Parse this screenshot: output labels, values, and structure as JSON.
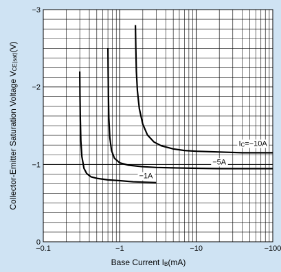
{
  "colors": {
    "background": "#cfe3f3",
    "plot": "#ffffff",
    "ink": "#000000"
  },
  "chart_data": {
    "type": "line",
    "title": "",
    "xlabel": "Base Current I",
    "xlabel_sub": "B",
    "xlabel_unit": "(mA)",
    "ylabel": "Collector-Emitter Saturation Voltage V",
    "ylabel_sub": "CE(sat)",
    "ylabel_unit": "(V)",
    "x_scale": "log",
    "xlim": [
      -0.1,
      -100
    ],
    "ylim": [
      0,
      -3
    ],
    "grid": true,
    "x_ticks": [
      {
        "value": -0.1,
        "label": "−0.1"
      },
      {
        "value": -1,
        "label": "−1"
      },
      {
        "value": -10,
        "label": "−10"
      },
      {
        "value": -100,
        "label": "−100"
      }
    ],
    "y_ticks": [
      {
        "value": 0,
        "label": "0"
      },
      {
        "value": -1,
        "label": "−1"
      },
      {
        "value": -2,
        "label": "−2"
      },
      {
        "value": -3,
        "label": "−3"
      }
    ],
    "series": [
      {
        "name": "−1A",
        "x": [
          -0.3,
          -0.302,
          -0.305,
          -0.31,
          -0.32,
          -0.34,
          -0.37,
          -0.42,
          -0.5,
          -0.7,
          -1.0,
          -1.5,
          -2.0,
          -3.0
        ],
        "y": [
          -2.2,
          -1.9,
          -1.6,
          -1.3,
          -1.1,
          -0.95,
          -0.88,
          -0.84,
          -0.82,
          -0.8,
          -0.79,
          -0.775,
          -0.77,
          -0.765
        ]
      },
      {
        "name": "−5A",
        "x": [
          -0.7,
          -0.705,
          -0.71,
          -0.72,
          -0.74,
          -0.78,
          -0.85,
          -1.0,
          -1.3,
          -2.0,
          -3.0,
          -5.0,
          -10,
          -20,
          -30,
          -40,
          -60,
          -100
        ],
        "y": [
          -2.5,
          -2.2,
          -1.9,
          -1.6,
          -1.35,
          -1.18,
          -1.08,
          -1.02,
          -0.99,
          -0.97,
          -0.96,
          -0.955,
          -0.95,
          -0.945,
          -0.945,
          -0.945,
          -0.945,
          -0.945
        ]
      },
      {
        "name": "I",
        "name_sub": "C",
        "name_value": "=−10A",
        "x": [
          -1.6,
          -1.62,
          -1.65,
          -1.7,
          -1.8,
          -2.0,
          -2.3,
          -2.8,
          -3.5,
          -5.0,
          -7.0,
          -10,
          -20,
          -40,
          -100
        ],
        "y": [
          -2.8,
          -2.5,
          -2.2,
          -1.95,
          -1.72,
          -1.52,
          -1.38,
          -1.29,
          -1.24,
          -1.2,
          -1.18,
          -1.17,
          -1.16,
          -1.15,
          -1.15
        ]
      }
    ],
    "labels": [
      {
        "text": "−1A",
        "x": -2.2,
        "y": -0.82
      },
      {
        "text": "−5A",
        "x": -20,
        "y": -1.0
      },
      {
        "text": "I",
        "sub": "C",
        "rest": "=−10A",
        "x": -55,
        "y": -1.24
      }
    ]
  }
}
